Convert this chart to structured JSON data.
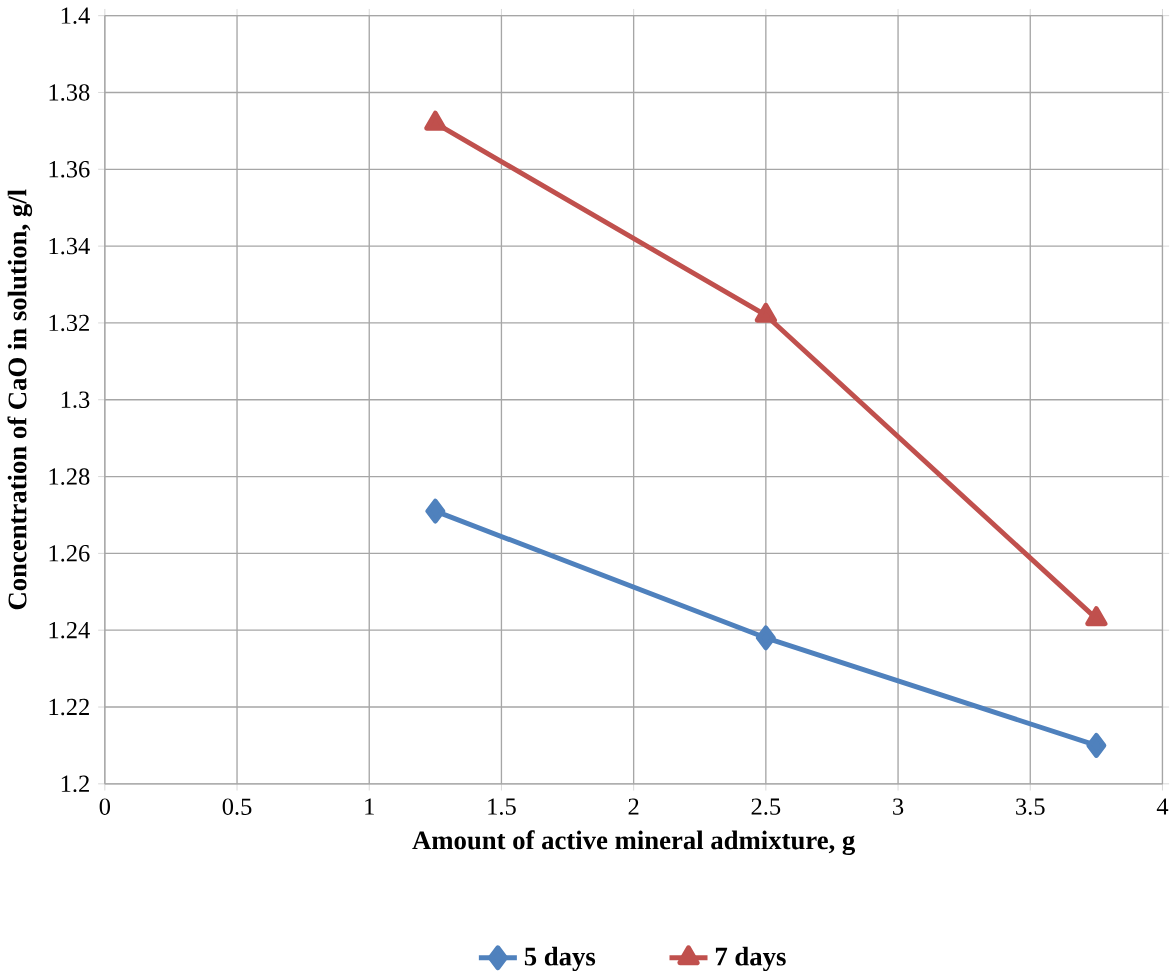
{
  "chart_data": {
    "type": "line",
    "xlabel": "Amount of active mineral admixture, g",
    "ylabel": "Concentration of CaO in solution, g/l",
    "xlim": [
      0,
      4
    ],
    "xticks": [
      0,
      0.5,
      1,
      1.5,
      2,
      2.5,
      3,
      3.5,
      4
    ],
    "ylim": [
      1.2,
      1.4
    ],
    "yticks": [
      1.2,
      1.22,
      1.24,
      1.26,
      1.28,
      1.3,
      1.32,
      1.34,
      1.36,
      1.38,
      1.4
    ],
    "grid": true,
    "legend": "bottom",
    "x": [
      1.25,
      2.5,
      3.75
    ],
    "series": [
      {
        "name": "5 days",
        "color": "#4f81bd",
        "marker": "diamond",
        "values": [
          1.271,
          1.238,
          1.21
        ]
      },
      {
        "name": "7 days",
        "color": "#c0504d",
        "marker": "triangle",
        "values": [
          1.372,
          1.322,
          1.243
        ]
      }
    ]
  }
}
